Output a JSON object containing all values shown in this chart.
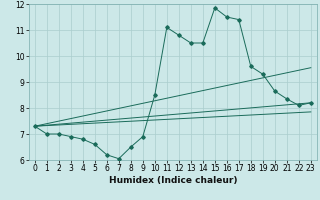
{
  "title": "",
  "xlabel": "Humidex (Indice chaleur)",
  "ylabel": "",
  "xlim": [
    -0.5,
    23.5
  ],
  "ylim": [
    6,
    12
  ],
  "yticks": [
    6,
    7,
    8,
    9,
    10,
    11,
    12
  ],
  "xticks": [
    0,
    1,
    2,
    3,
    4,
    5,
    6,
    7,
    8,
    9,
    10,
    11,
    12,
    13,
    14,
    15,
    16,
    17,
    18,
    19,
    20,
    21,
    22,
    23
  ],
  "bg_color": "#cce8e8",
  "line_color": "#1a6b5a",
  "grid_color": "#aacece",
  "main_line_x": [
    0,
    1,
    2,
    3,
    4,
    5,
    6,
    7,
    8,
    9,
    10,
    11,
    12,
    13,
    14,
    15,
    16,
    17,
    18,
    19,
    20,
    21,
    22,
    23
  ],
  "main_line_y": [
    7.3,
    7.0,
    7.0,
    6.9,
    6.8,
    6.6,
    6.2,
    6.05,
    6.5,
    6.9,
    8.5,
    11.1,
    10.8,
    10.5,
    10.5,
    11.85,
    11.5,
    11.4,
    9.6,
    9.3,
    8.65,
    8.35,
    8.1,
    8.2
  ],
  "trend1_x": [
    0,
    23
  ],
  "trend1_y": [
    7.3,
    9.55
  ],
  "trend2_x": [
    0,
    23
  ],
  "trend2_y": [
    7.3,
    8.2
  ],
  "trend3_x": [
    0,
    23
  ],
  "trend3_y": [
    7.3,
    7.85
  ]
}
